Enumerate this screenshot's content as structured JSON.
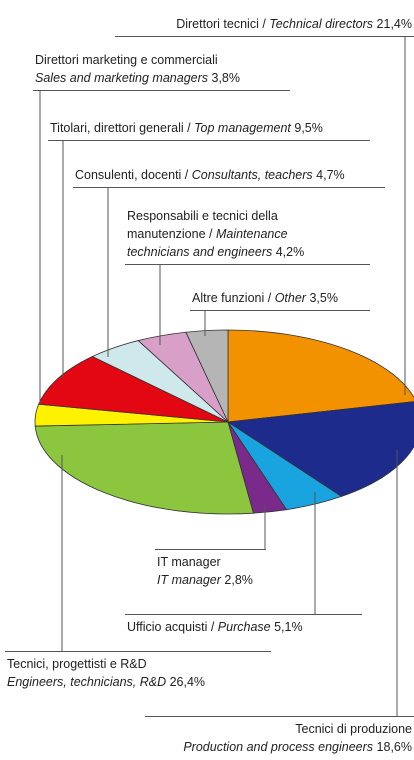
{
  "chart_data": {
    "type": "pie",
    "categories": [
      "Direttori tecnici /",
      "Tecnici di produzione",
      "Ufficio acquisti /",
      "IT manager",
      "Tecnici, progettisti e R&D",
      "Direttori marketing e commerciali",
      "Titolari, direttori generali /",
      "Consulenti, docenti /",
      "Responsabili e tecnici della manutenzione /",
      "Altre funzioni /"
    ],
    "categories_en": [
      "Technical directors",
      "Production and process engineers",
      "Purchase",
      "IT manager",
      "Engineers, technicians, R&D",
      "Sales and marketing managers",
      "Top management",
      "Consultants, teachers",
      "Maintenance technicians and engineers",
      "Other"
    ],
    "values": [
      21.4,
      18.6,
      5.1,
      2.8,
      26.4,
      3.8,
      9.5,
      4.7,
      4.2,
      3.5
    ],
    "value_labels": [
      "21,4%",
      "18,6%",
      "5,1%",
      "2,8%",
      "26,4%",
      "3,8%",
      "9,5%",
      "4,7%",
      "4,2%",
      "3,5%"
    ],
    "colors": [
      "#f39200",
      "#1d2c8c",
      "#19a3df",
      "#7a2a8a",
      "#8cc63f",
      "#fff200",
      "#e30613",
      "#cfe8ec",
      "#d8a0c8",
      "#b5b5b5"
    ]
  }
}
